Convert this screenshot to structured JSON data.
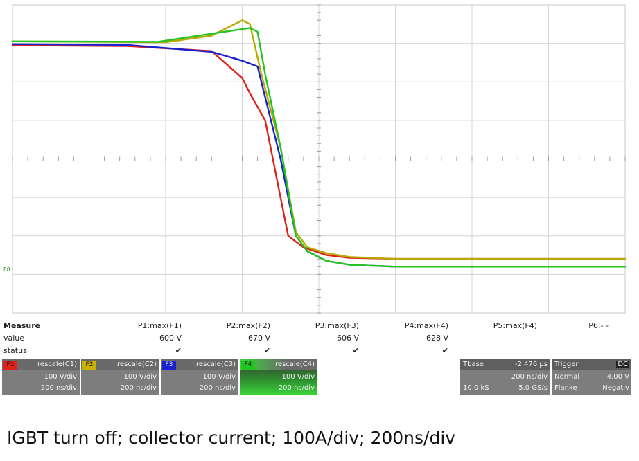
{
  "chart_data": {
    "type": "line",
    "title": "",
    "xlabel": "",
    "ylabel": "",
    "x_unit": "ns",
    "xlim": [
      0,
      1600
    ],
    "ylim": [
      -100,
      700
    ],
    "grid": true,
    "series": [
      {
        "color": "#e0201a",
        "x": [
          0,
          300,
          520,
          600,
          620,
          660,
          690,
          720,
          760,
          820,
          880,
          1000,
          1200,
          1400,
          1600
        ],
        "y": [
          595,
          593,
          580,
          510,
          470,
          400,
          250,
          100,
          70,
          50,
          43,
          40,
          40,
          40,
          40
        ]
      },
      {
        "color": "#b8a800",
        "x": [
          0,
          400,
          520,
          600,
          620,
          650,
          700,
          740,
          770,
          820,
          880,
          1000,
          1200,
          1400,
          1600
        ],
        "y": [
          605,
          603,
          620,
          660,
          650,
          520,
          330,
          110,
          70,
          55,
          45,
          40,
          40,
          40,
          40
        ]
      },
      {
        "color": "#1a22d0",
        "x": [
          0,
          300,
          520,
          600,
          640,
          660,
          700,
          740,
          770,
          820,
          880,
          1000,
          1200,
          1400,
          1600
        ],
        "y": [
          598,
          596,
          578,
          555,
          540,
          460,
          300,
          100,
          60,
          35,
          25,
          20,
          20,
          20,
          20
        ]
      },
      {
        "color": "#22c422",
        "x": [
          0,
          380,
          520,
          620,
          640,
          660,
          700,
          740,
          770,
          820,
          880,
          1000,
          1200,
          1400,
          1600
        ],
        "y": [
          605,
          604,
          625,
          640,
          630,
          520,
          330,
          100,
          60,
          35,
          25,
          20,
          20,
          20,
          20
        ]
      }
    ]
  },
  "trace_label": "F8",
  "measure": {
    "title": "Measure",
    "row_labels": [
      "value",
      "status"
    ],
    "params": [
      {
        "name": "P1:max(F1)",
        "value": "600 V",
        "status": "✔"
      },
      {
        "name": "P2:max(F2)",
        "value": "670 V",
        "status": "✔"
      },
      {
        "name": "P3:max(F3)",
        "value": "606 V",
        "status": "✔"
      },
      {
        "name": "P4:max(F4)",
        "value": "628 V",
        "status": "✔"
      },
      {
        "name": "P5:max(F4)",
        "value": "",
        "status": ""
      },
      {
        "name": "P6:- -",
        "value": "",
        "status": ""
      }
    ]
  },
  "channels": [
    {
      "tag": "F1",
      "color": "#e0201a",
      "title": "rescale(C1)",
      "vdiv": "100 V/div",
      "tdiv": "200 ns/div"
    },
    {
      "tag": "F2",
      "color": "#c8b400",
      "title": "rescale(C2)",
      "vdiv": "100 V/div",
      "tdiv": "200 ns/div"
    },
    {
      "tag": "F3",
      "color": "#1a22d0",
      "title": "rescale(C3)",
      "vdiv": "100 V/div",
      "tdiv": "200 ns/div"
    },
    {
      "tag": "F4",
      "color": "#22c422",
      "title": "rescale(C4)",
      "vdiv": "100 V/div",
      "tdiv": "200 ns/div"
    }
  ],
  "timebase": {
    "label": "Tbase",
    "offset": "-2.476 µs",
    "per_div": "200 ns/div",
    "samples": "10.0 kS",
    "rate": "5.0 GS/s"
  },
  "trigger": {
    "label": "Trigger",
    "coupling": "DC",
    "mode": "Normal",
    "level": "4.00 V",
    "edge_label": "Flanke",
    "slope": "Negativ"
  },
  "caption": "IGBT turn off; collector current; 100A/div; 200ns/div"
}
